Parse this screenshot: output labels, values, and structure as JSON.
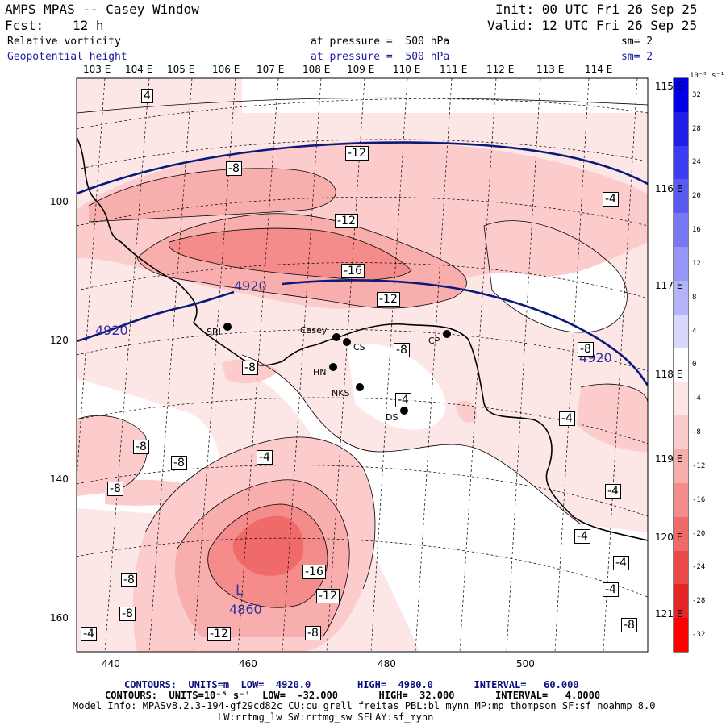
{
  "header": {
    "model": "AMPS MPAS -- Casey Window",
    "fcst_label": "Fcst:",
    "fcst_value": "12 h",
    "init": "Init: 00 UTC Fri 26 Sep 25",
    "valid": "Valid: 12 UTC Fri 26 Sep 25",
    "field1": "Relative vorticity",
    "field1_level": "at pressure =  500 hPa",
    "field1_sm": "sm= 2",
    "field2": "Geopotential height",
    "field2_level": "at pressure =  500 hPa",
    "field2_sm": "sm= 2"
  },
  "map": {
    "lon_top_labels": [
      "103 E",
      "104 E",
      "105 E",
      "106 E",
      "107 E",
      "108 E",
      "109 E",
      "110 E",
      "111 E",
      "112 E",
      "113 E",
      "114 E"
    ],
    "lon_right_labels": [
      "115 E",
      "116 E",
      "117 E",
      "118 E",
      "119 E",
      "120 E",
      "121 E"
    ],
    "x_ticks": [
      "440",
      "460",
      "480",
      "500"
    ],
    "y_ticks": [
      "100",
      "120",
      "140",
      "160"
    ],
    "stations": [
      {
        "name": "SRI"
      },
      {
        "name": "Casey"
      },
      {
        "name": "CS"
      },
      {
        "name": "HN"
      },
      {
        "name": "NKS"
      },
      {
        "name": "CP"
      },
      {
        "name": "DS"
      }
    ],
    "height_labels": [
      "4920",
      "4920",
      "4920"
    ],
    "low_label": "L",
    "low_value": "4860",
    "vort_labels": [
      "4",
      "-8",
      "-12",
      "-12",
      "-16",
      "-12",
      "-8",
      "-8",
      "-4",
      "-8",
      "-4",
      "-8",
      "-8",
      "-4",
      "-8",
      "-4",
      "-4",
      "-4",
      "-4",
      "-16",
      "-12",
      "-8",
      "-8",
      "-12",
      "-8",
      "-4",
      "-4",
      "-8"
    ]
  },
  "colorbar": {
    "unit": "10⁻⁵ s⁻¹",
    "levels": [
      "32",
      "28",
      "24",
      "20",
      "16",
      "12",
      "8",
      "4",
      "0",
      "-4",
      "-8",
      "-12",
      "-16",
      "-20",
      "-24",
      "-28",
      "-32"
    ],
    "colors": [
      "#0000e6",
      "#1e1ee6",
      "#3c3cf0",
      "#5a5af0",
      "#7878f5",
      "#9696f8",
      "#b4b4fa",
      "#d8d8fc",
      "#ffffff",
      "#fde6e6",
      "#fccccc",
      "#f9aeae",
      "#f58c8c",
      "#f06a6a",
      "#eb4848",
      "#e62626",
      "#ff0000"
    ]
  },
  "footer": {
    "contours1": "CONTOURS:  UNITS=m  LOW=  4920.0        HIGH=  4980.0       INTERVAL=   60.000",
    "contours2": "CONTOURS:  UNITS=10⁻⁵ s⁻¹  LOW=  -32.000       HIGH=  32.000       INTERVAL=   4.0000",
    "model_info": "Model Info: MPASv8.2.3-194-gf29cd82c CU:cu_grell_freitas PBL:bl_mynn MP:mp_thompson SF:sf_noahmp 8.0",
    "model_info2": "LW:rrtmg_lw SW:rrtmg_sw SFLAY:sf_mynn"
  }
}
